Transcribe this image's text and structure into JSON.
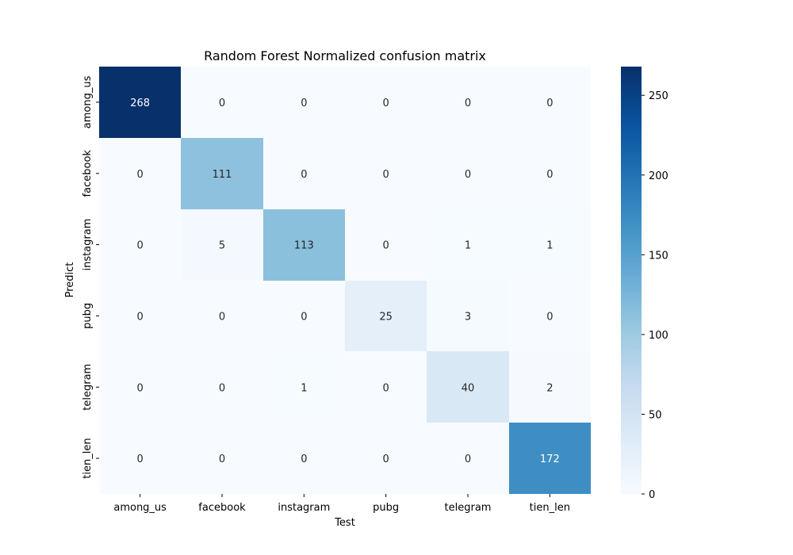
{
  "chart_data": {
    "type": "heatmap",
    "title": "Random Forest Normalized confusion matrix",
    "xlabel": "Test",
    "ylabel": "Predict",
    "x_categories": [
      "among_us",
      "facebook",
      "instagram",
      "pubg",
      "telegram",
      "tien_len"
    ],
    "y_categories": [
      "among_us",
      "facebook",
      "instagram",
      "pubg",
      "telegram",
      "tien_len"
    ],
    "values": [
      [
        268,
        0,
        0,
        0,
        0,
        0
      ],
      [
        0,
        111,
        0,
        0,
        0,
        0
      ],
      [
        0,
        5,
        113,
        0,
        1,
        1
      ],
      [
        0,
        0,
        0,
        25,
        3,
        0
      ],
      [
        0,
        0,
        1,
        0,
        40,
        2
      ],
      [
        0,
        0,
        0,
        0,
        0,
        172
      ]
    ],
    "colormap": "Blues",
    "color_range": [
      0,
      268
    ],
    "colorbar_ticks": [
      0,
      50,
      100,
      150,
      200,
      250
    ],
    "colorbar_tick_labels": [
      "0",
      "50",
      "100",
      "150",
      "200",
      "250"
    ],
    "annotation_colors": {
      "light": "#ffffff",
      "dark": "#262626"
    },
    "colormap_stops": [
      "#f7fbff",
      "#deebf7",
      "#c6dbef",
      "#9ecae1",
      "#6baed6",
      "#4292c6",
      "#2171b5",
      "#08519c",
      "#08306b"
    ]
  }
}
